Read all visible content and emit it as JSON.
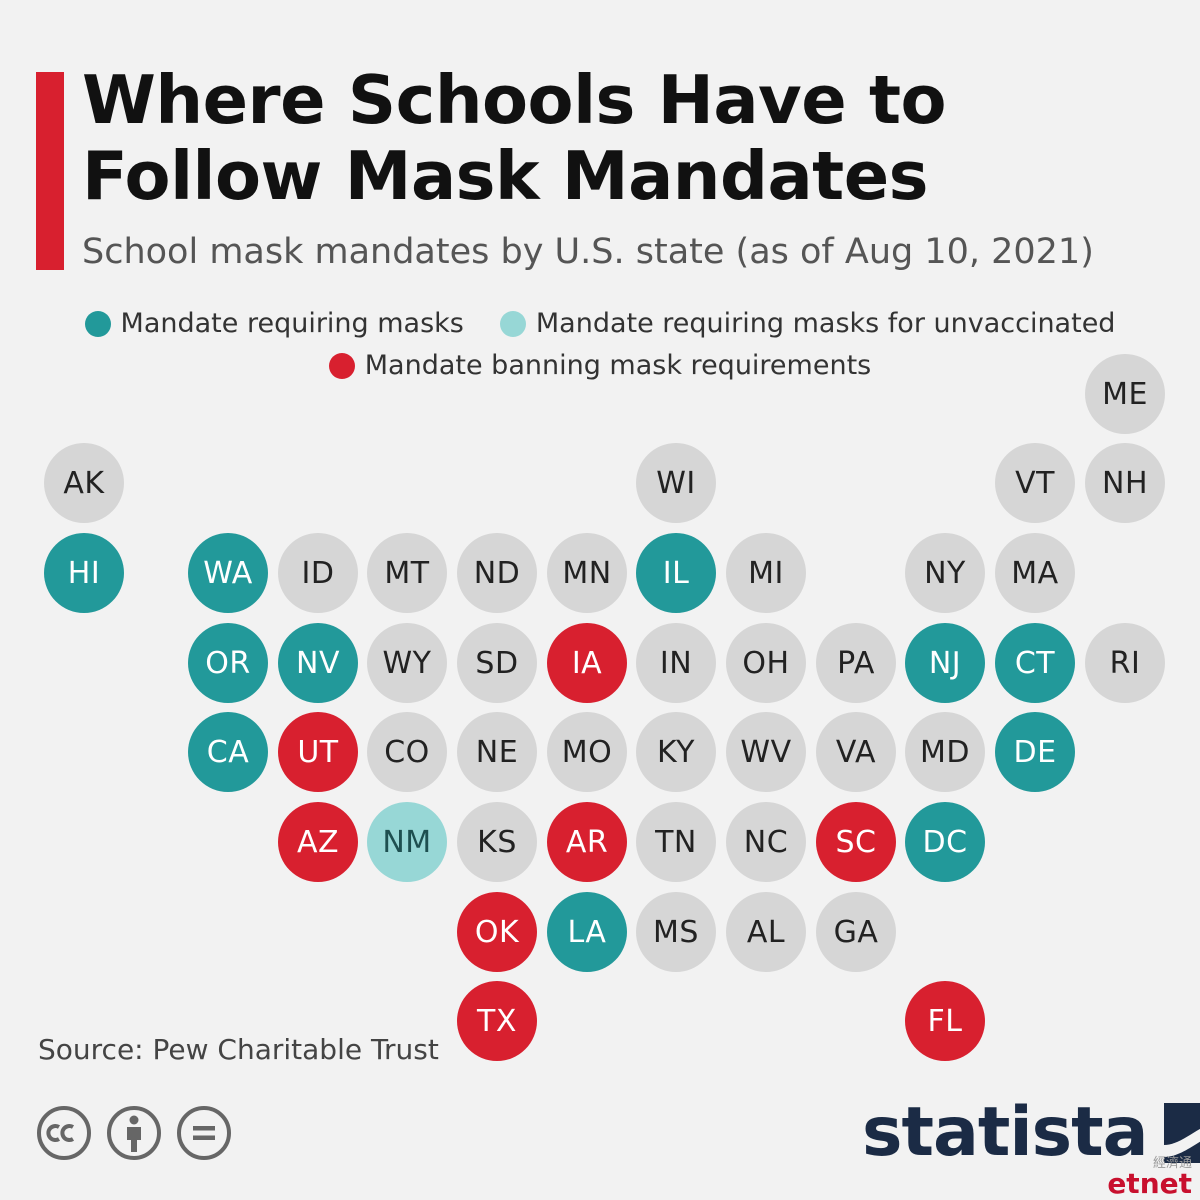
{
  "title": "Where Schools Have to Follow Mask Mandates",
  "subtitle": "School mask mandates by U.S. state (as of Aug 10, 2021)",
  "legend": {
    "requiring": "Mandate requiring masks",
    "unvaccinated": "Mandate requiring masks for unvaccinated",
    "banning": "Mandate banning mask requirements"
  },
  "colors": {
    "requiring": "#22999a",
    "unvaccinated": "#97d7d6",
    "banning": "#d8202f",
    "none": "#d6d6d6",
    "accent": "#d8202f",
    "brand": "#1b2b45"
  },
  "states": [
    {
      "code": "ME",
      "status": "none",
      "row": 0,
      "col": 12
    },
    {
      "code": "AK",
      "status": "none",
      "row": 1,
      "col": 0
    },
    {
      "code": "WI",
      "status": "none",
      "row": 1,
      "col": 7
    },
    {
      "code": "VT",
      "status": "none",
      "row": 1,
      "col": 11
    },
    {
      "code": "NH",
      "status": "none",
      "row": 1,
      "col": 12
    },
    {
      "code": "HI",
      "status": "requiring",
      "row": 2,
      "col": 0
    },
    {
      "code": "WA",
      "status": "requiring",
      "row": 2,
      "col": 2
    },
    {
      "code": "ID",
      "status": "none",
      "row": 2,
      "col": 3
    },
    {
      "code": "MT",
      "status": "none",
      "row": 2,
      "col": 4
    },
    {
      "code": "ND",
      "status": "none",
      "row": 2,
      "col": 5
    },
    {
      "code": "MN",
      "status": "none",
      "row": 2,
      "col": 6
    },
    {
      "code": "IL",
      "status": "requiring",
      "row": 2,
      "col": 7
    },
    {
      "code": "MI",
      "status": "none",
      "row": 2,
      "col": 8
    },
    {
      "code": "NY",
      "status": "none",
      "row": 2,
      "col": 10
    },
    {
      "code": "MA",
      "status": "none",
      "row": 2,
      "col": 11
    },
    {
      "code": "OR",
      "status": "requiring",
      "row": 3,
      "col": 2
    },
    {
      "code": "NV",
      "status": "requiring",
      "row": 3,
      "col": 3
    },
    {
      "code": "WY",
      "status": "none",
      "row": 3,
      "col": 4
    },
    {
      "code": "SD",
      "status": "none",
      "row": 3,
      "col": 5
    },
    {
      "code": "IA",
      "status": "banning",
      "row": 3,
      "col": 6
    },
    {
      "code": "IN",
      "status": "none",
      "row": 3,
      "col": 7
    },
    {
      "code": "OH",
      "status": "none",
      "row": 3,
      "col": 8
    },
    {
      "code": "PA",
      "status": "none",
      "row": 3,
      "col": 9
    },
    {
      "code": "NJ",
      "status": "requiring",
      "row": 3,
      "col": 10
    },
    {
      "code": "CT",
      "status": "requiring",
      "row": 3,
      "col": 11
    },
    {
      "code": "RI",
      "status": "none",
      "row": 3,
      "col": 12
    },
    {
      "code": "CA",
      "status": "requiring",
      "row": 4,
      "col": 2
    },
    {
      "code": "UT",
      "status": "banning",
      "row": 4,
      "col": 3
    },
    {
      "code": "CO",
      "status": "none",
      "row": 4,
      "col": 4
    },
    {
      "code": "NE",
      "status": "none",
      "row": 4,
      "col": 5
    },
    {
      "code": "MO",
      "status": "none",
      "row": 4,
      "col": 6
    },
    {
      "code": "KY",
      "status": "none",
      "row": 4,
      "col": 7
    },
    {
      "code": "WV",
      "status": "none",
      "row": 4,
      "col": 8
    },
    {
      "code": "VA",
      "status": "none",
      "row": 4,
      "col": 9
    },
    {
      "code": "MD",
      "status": "none",
      "row": 4,
      "col": 10
    },
    {
      "code": "DE",
      "status": "requiring",
      "row": 4,
      "col": 11
    },
    {
      "code": "AZ",
      "status": "banning",
      "row": 5,
      "col": 3
    },
    {
      "code": "NM",
      "status": "unvaccinated",
      "row": 5,
      "col": 4
    },
    {
      "code": "KS",
      "status": "none",
      "row": 5,
      "col": 5
    },
    {
      "code": "AR",
      "status": "banning",
      "row": 5,
      "col": 6
    },
    {
      "code": "TN",
      "status": "none",
      "row": 5,
      "col": 7
    },
    {
      "code": "NC",
      "status": "none",
      "row": 5,
      "col": 8
    },
    {
      "code": "SC",
      "status": "banning",
      "row": 5,
      "col": 9
    },
    {
      "code": "DC",
      "status": "requiring",
      "row": 5,
      "col": 10
    },
    {
      "code": "OK",
      "status": "banning",
      "row": 6,
      "col": 5
    },
    {
      "code": "LA",
      "status": "requiring",
      "row": 6,
      "col": 6
    },
    {
      "code": "MS",
      "status": "none",
      "row": 6,
      "col": 7
    },
    {
      "code": "AL",
      "status": "none",
      "row": 6,
      "col": 8
    },
    {
      "code": "GA",
      "status": "none",
      "row": 6,
      "col": 9
    },
    {
      "code": "TX",
      "status": "banning",
      "row": 7,
      "col": 5
    },
    {
      "code": "FL",
      "status": "banning",
      "row": 7,
      "col": 10
    }
  ],
  "source": "Source: Pew Charitable Trust",
  "license_icons": [
    "creative-commons-icon",
    "attribution-icon",
    "no-derivatives-icon"
  ],
  "brand": "statista",
  "watermark": {
    "cn": "經濟通",
    "en": "etnet"
  }
}
